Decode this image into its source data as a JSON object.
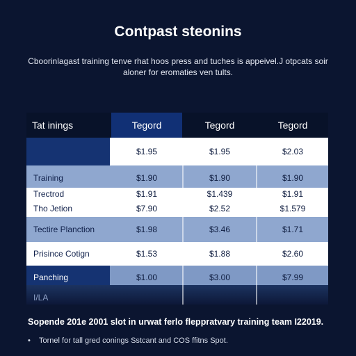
{
  "title": "Contpast steonins",
  "subtitle": "Cboorinlagast training tenve rhat hoos press and tuches is appeivel.J otpcats soir aloner for eromaties ven tults.",
  "table": {
    "header": {
      "first": "Tat inings",
      "cols": [
        "Tegord",
        "Tegord",
        "Tegord"
      ]
    },
    "rows": [
      {
        "label": "",
        "values": [
          "$1.95",
          "$1.95",
          "$2.03"
        ]
      },
      {
        "label": "Training",
        "values": [
          "$1.90",
          "$1.90",
          "$1.90"
        ]
      },
      {
        "label": "Trectrod",
        "values": [
          "$1.91",
          "$1.439",
          "$1.91"
        ]
      },
      {
        "label": "Tho Jetion",
        "values": [
          "$7.90",
          "$2.52",
          "$1.579"
        ]
      },
      {
        "label": "Tectire Planction",
        "values": [
          "$1.98",
          "$3.46",
          "$1.71"
        ]
      },
      {
        "label": "Prisince Cotign",
        "values": [
          "$1.53",
          "$1.88",
          "$2.60"
        ]
      },
      {
        "label": "Panching",
        "values": [
          "$1.00",
          "$3.00",
          "$7.99"
        ]
      },
      {
        "label": "I/LA",
        "values": [
          "",
          "",
          ""
        ]
      }
    ]
  },
  "footer": "Sopende 201e 2001 slot in urwat ferlo fleppratvary training team I22019.",
  "bullet": "Tornel for tall gred conings Sstcant and COS ffitns Spot.",
  "colors": {
    "background": "#0b1530",
    "header": "#081229",
    "header_highlight": "#113075",
    "row_blue": "#8fa7cf",
    "row_dark": "#153372"
  }
}
